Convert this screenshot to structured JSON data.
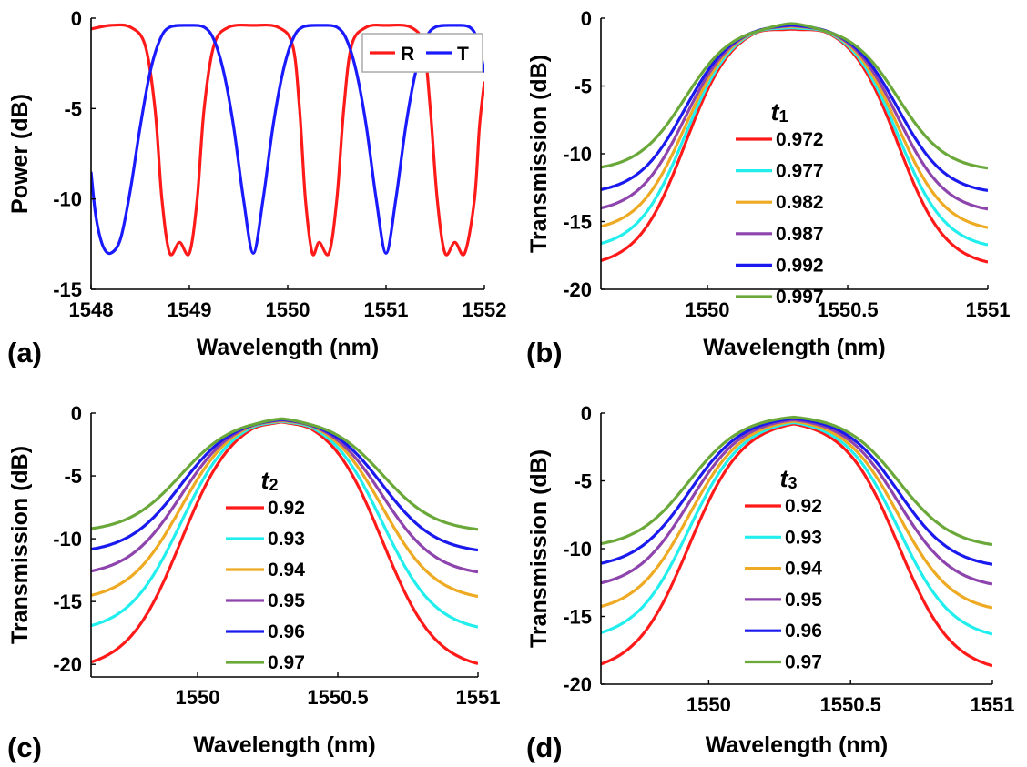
{
  "colors": {
    "R": "#ff1a1a",
    "T": "#1a1aff",
    "palette": [
      "#ff1a1a",
      "#22eeee",
      "#eeaa22",
      "#8e44ad",
      "#1a1aee",
      "#6aa83a"
    ]
  },
  "chart_data": [
    {
      "panel_label": "(a)",
      "type": "line",
      "xlabel": "Wavelength (nm)",
      "ylabel": "Power (dB)",
      "xlim": [
        1548,
        1552
      ],
      "ylim": [
        -15,
        0
      ],
      "xticks": [
        1548,
        1549,
        1550,
        1551,
        1552
      ],
      "yticks": [
        0,
        -5,
        -10,
        -15
      ],
      "legend": {
        "position": "top-right",
        "orientation": "horizontal",
        "title": "",
        "title_sub": "",
        "entries": [
          "R",
          "T"
        ]
      },
      "series": [
        {
          "name": "R",
          "color_key": "R",
          "points": [
            [
              1548.0,
              -0.6
            ],
            [
              1548.2,
              -0.4
            ],
            [
              1548.4,
              -0.5
            ],
            [
              1548.55,
              -1.5
            ],
            [
              1548.65,
              -5
            ],
            [
              1548.72,
              -10
            ],
            [
              1548.8,
              -13
            ],
            [
              1548.9,
              -12.4
            ],
            [
              1549.0,
              -13
            ],
            [
              1549.08,
              -10
            ],
            [
              1549.15,
              -5
            ],
            [
              1549.25,
              -1.5
            ],
            [
              1549.4,
              -0.5
            ],
            [
              1549.65,
              -0.4
            ],
            [
              1549.9,
              -0.5
            ],
            [
              1550.05,
              -1.5
            ],
            [
              1550.12,
              -5
            ],
            [
              1550.18,
              -10
            ],
            [
              1550.25,
              -13
            ],
            [
              1550.32,
              -12.4
            ],
            [
              1550.42,
              -13
            ],
            [
              1550.5,
              -10
            ],
            [
              1550.57,
              -5
            ],
            [
              1550.65,
              -1.5
            ],
            [
              1550.8,
              -0.5
            ],
            [
              1551.0,
              -0.4
            ],
            [
              1551.25,
              -0.5
            ],
            [
              1551.38,
              -1.5
            ],
            [
              1551.45,
              -5
            ],
            [
              1551.52,
              -10
            ],
            [
              1551.6,
              -13
            ],
            [
              1551.7,
              -12.4
            ],
            [
              1551.8,
              -13
            ],
            [
              1551.9,
              -10
            ],
            [
              1551.95,
              -6
            ],
            [
              1552.0,
              -3.5
            ]
          ]
        },
        {
          "name": "T",
          "color_key": "T",
          "points": [
            [
              1548.0,
              -8.5
            ],
            [
              1548.05,
              -11
            ],
            [
              1548.12,
              -12.6
            ],
            [
              1548.2,
              -13
            ],
            [
              1548.3,
              -12.2
            ],
            [
              1548.4,
              -9.5
            ],
            [
              1548.5,
              -6
            ],
            [
              1548.6,
              -3
            ],
            [
              1548.7,
              -1.2
            ],
            [
              1548.8,
              -0.5
            ],
            [
              1549.0,
              -0.4
            ],
            [
              1549.15,
              -0.5
            ],
            [
              1549.25,
              -1.2
            ],
            [
              1549.35,
              -3
            ],
            [
              1549.45,
              -6
            ],
            [
              1549.55,
              -10
            ],
            [
              1549.65,
              -13
            ],
            [
              1549.75,
              -10
            ],
            [
              1549.85,
              -6
            ],
            [
              1549.95,
              -3
            ],
            [
              1550.05,
              -1.2
            ],
            [
              1550.15,
              -0.5
            ],
            [
              1550.35,
              -0.4
            ],
            [
              1550.5,
              -0.5
            ],
            [
              1550.6,
              -1.2
            ],
            [
              1550.7,
              -3
            ],
            [
              1550.8,
              -6
            ],
            [
              1550.9,
              -10
            ],
            [
              1551.0,
              -13
            ],
            [
              1551.1,
              -10
            ],
            [
              1551.2,
              -6
            ],
            [
              1551.3,
              -3
            ],
            [
              1551.4,
              -1.2
            ],
            [
              1551.5,
              -0.5
            ],
            [
              1551.7,
              -0.4
            ],
            [
              1551.85,
              -0.5
            ],
            [
              1551.93,
              -1.2
            ],
            [
              1552.0,
              -3
            ]
          ]
        }
      ]
    },
    {
      "panel_label": "(b)",
      "type": "line",
      "xlabel": "Wavelength (nm)",
      "ylabel": "Transmission (dB)",
      "xlim": [
        1549.62,
        1551
      ],
      "ylim": [
        -20,
        0
      ],
      "xticks": [
        1550,
        1550.5,
        1551
      ],
      "yticks": [
        0,
        -5,
        -10,
        -15,
        -20
      ],
      "legend": {
        "position": "center",
        "orientation": "vertical",
        "title": "t",
        "title_sub": "1",
        "entries": [
          "0.972",
          "0.977",
          "0.982",
          "0.987",
          "0.992",
          "0.997"
        ]
      },
      "series": [
        {
          "name": "0.972",
          "floor": -18.4,
          "flat": [
            -0.4,
            -0.8
          ]
        },
        {
          "name": "0.977",
          "floor": -17.1,
          "flat": [
            -0.4,
            -0.7
          ]
        },
        {
          "name": "0.982",
          "floor": -15.8,
          "flat": [
            -0.4,
            -0.6
          ]
        },
        {
          "name": "0.987",
          "floor": -14.4,
          "flat": [
            -0.45,
            -0.55
          ]
        },
        {
          "name": "0.992",
          "floor": -13.0,
          "flat": [
            -0.5,
            -0.5
          ]
        },
        {
          "name": "0.997",
          "floor": -11.3,
          "flat": [
            -0.6,
            -0.4
          ]
        }
      ],
      "shape": {
        "center": 1550.3,
        "plateau_half": 0.13,
        "edge_mid_offset": 0.38,
        "edge_width": 0.085
      }
    },
    {
      "panel_label": "(c)",
      "type": "line",
      "xlabel": "Wavelength (nm)",
      "ylabel": "Transmission (dB)",
      "xlim": [
        1549.62,
        1551
      ],
      "ylim": [
        -21,
        0
      ],
      "xticks": [
        1550,
        1550.5,
        1551
      ],
      "yticks": [
        0,
        -5,
        -10,
        -15,
        -20
      ],
      "legend": {
        "position": "center",
        "orientation": "vertical",
        "title": "t",
        "title_sub": "2",
        "entries": [
          "0.92",
          "0.93",
          "0.94",
          "0.95",
          "0.96",
          "0.97"
        ]
      },
      "series": [
        {
          "name": "0.92",
          "floor": -20.5,
          "flat": [
            -0.4,
            -0.7
          ]
        },
        {
          "name": "0.93",
          "floor": -17.5,
          "flat": [
            -0.4,
            -0.65
          ]
        },
        {
          "name": "0.94",
          "floor": -15.0,
          "flat": [
            -0.4,
            -0.6
          ]
        },
        {
          "name": "0.95",
          "floor": -13.0,
          "flat": [
            -0.45,
            -0.55
          ]
        },
        {
          "name": "0.96",
          "floor": -11.2,
          "flat": [
            -0.5,
            -0.5
          ]
        },
        {
          "name": "0.97",
          "floor": -9.5,
          "flat": [
            -0.55,
            -0.45
          ]
        }
      ],
      "shape": {
        "center": 1550.3,
        "plateau_half": 0.11,
        "edge_mid_offset": 0.36,
        "edge_width": 0.095
      }
    },
    {
      "panel_label": "(d)",
      "type": "line",
      "xlabel": "Wavelength (nm)",
      "ylabel": "Transmission (dB)",
      "xlim": [
        1549.62,
        1551
      ],
      "ylim": [
        -20,
        0
      ],
      "xticks": [
        1550,
        1550.5,
        1551
      ],
      "yticks": [
        0,
        -5,
        -10,
        -15,
        -20
      ],
      "legend": {
        "position": "center",
        "orientation": "vertical",
        "title": "t",
        "title_sub": "3",
        "entries": [
          "0.92",
          "0.93",
          "0.94",
          "0.95",
          "0.96",
          "0.97"
        ]
      },
      "series": [
        {
          "name": "0.92",
          "floor": -19.2,
          "flat": [
            -0.8,
            -0.8
          ]
        },
        {
          "name": "0.93",
          "floor": -16.8,
          "flat": [
            -0.7,
            -0.7
          ]
        },
        {
          "name": "0.94",
          "floor": -14.8,
          "flat": [
            -0.6,
            -0.6
          ]
        },
        {
          "name": "0.95",
          "floor": -13.0,
          "flat": [
            -0.5,
            -0.5
          ]
        },
        {
          "name": "0.96",
          "floor": -11.5,
          "flat": [
            -0.4,
            -0.4
          ]
        },
        {
          "name": "0.97",
          "floor": -10.0,
          "flat": [
            -0.3,
            -0.3
          ]
        }
      ],
      "shape": {
        "center": 1550.3,
        "plateau_half": 0.12,
        "edge_mid_offset": 0.37,
        "edge_width": 0.095
      }
    }
  ]
}
